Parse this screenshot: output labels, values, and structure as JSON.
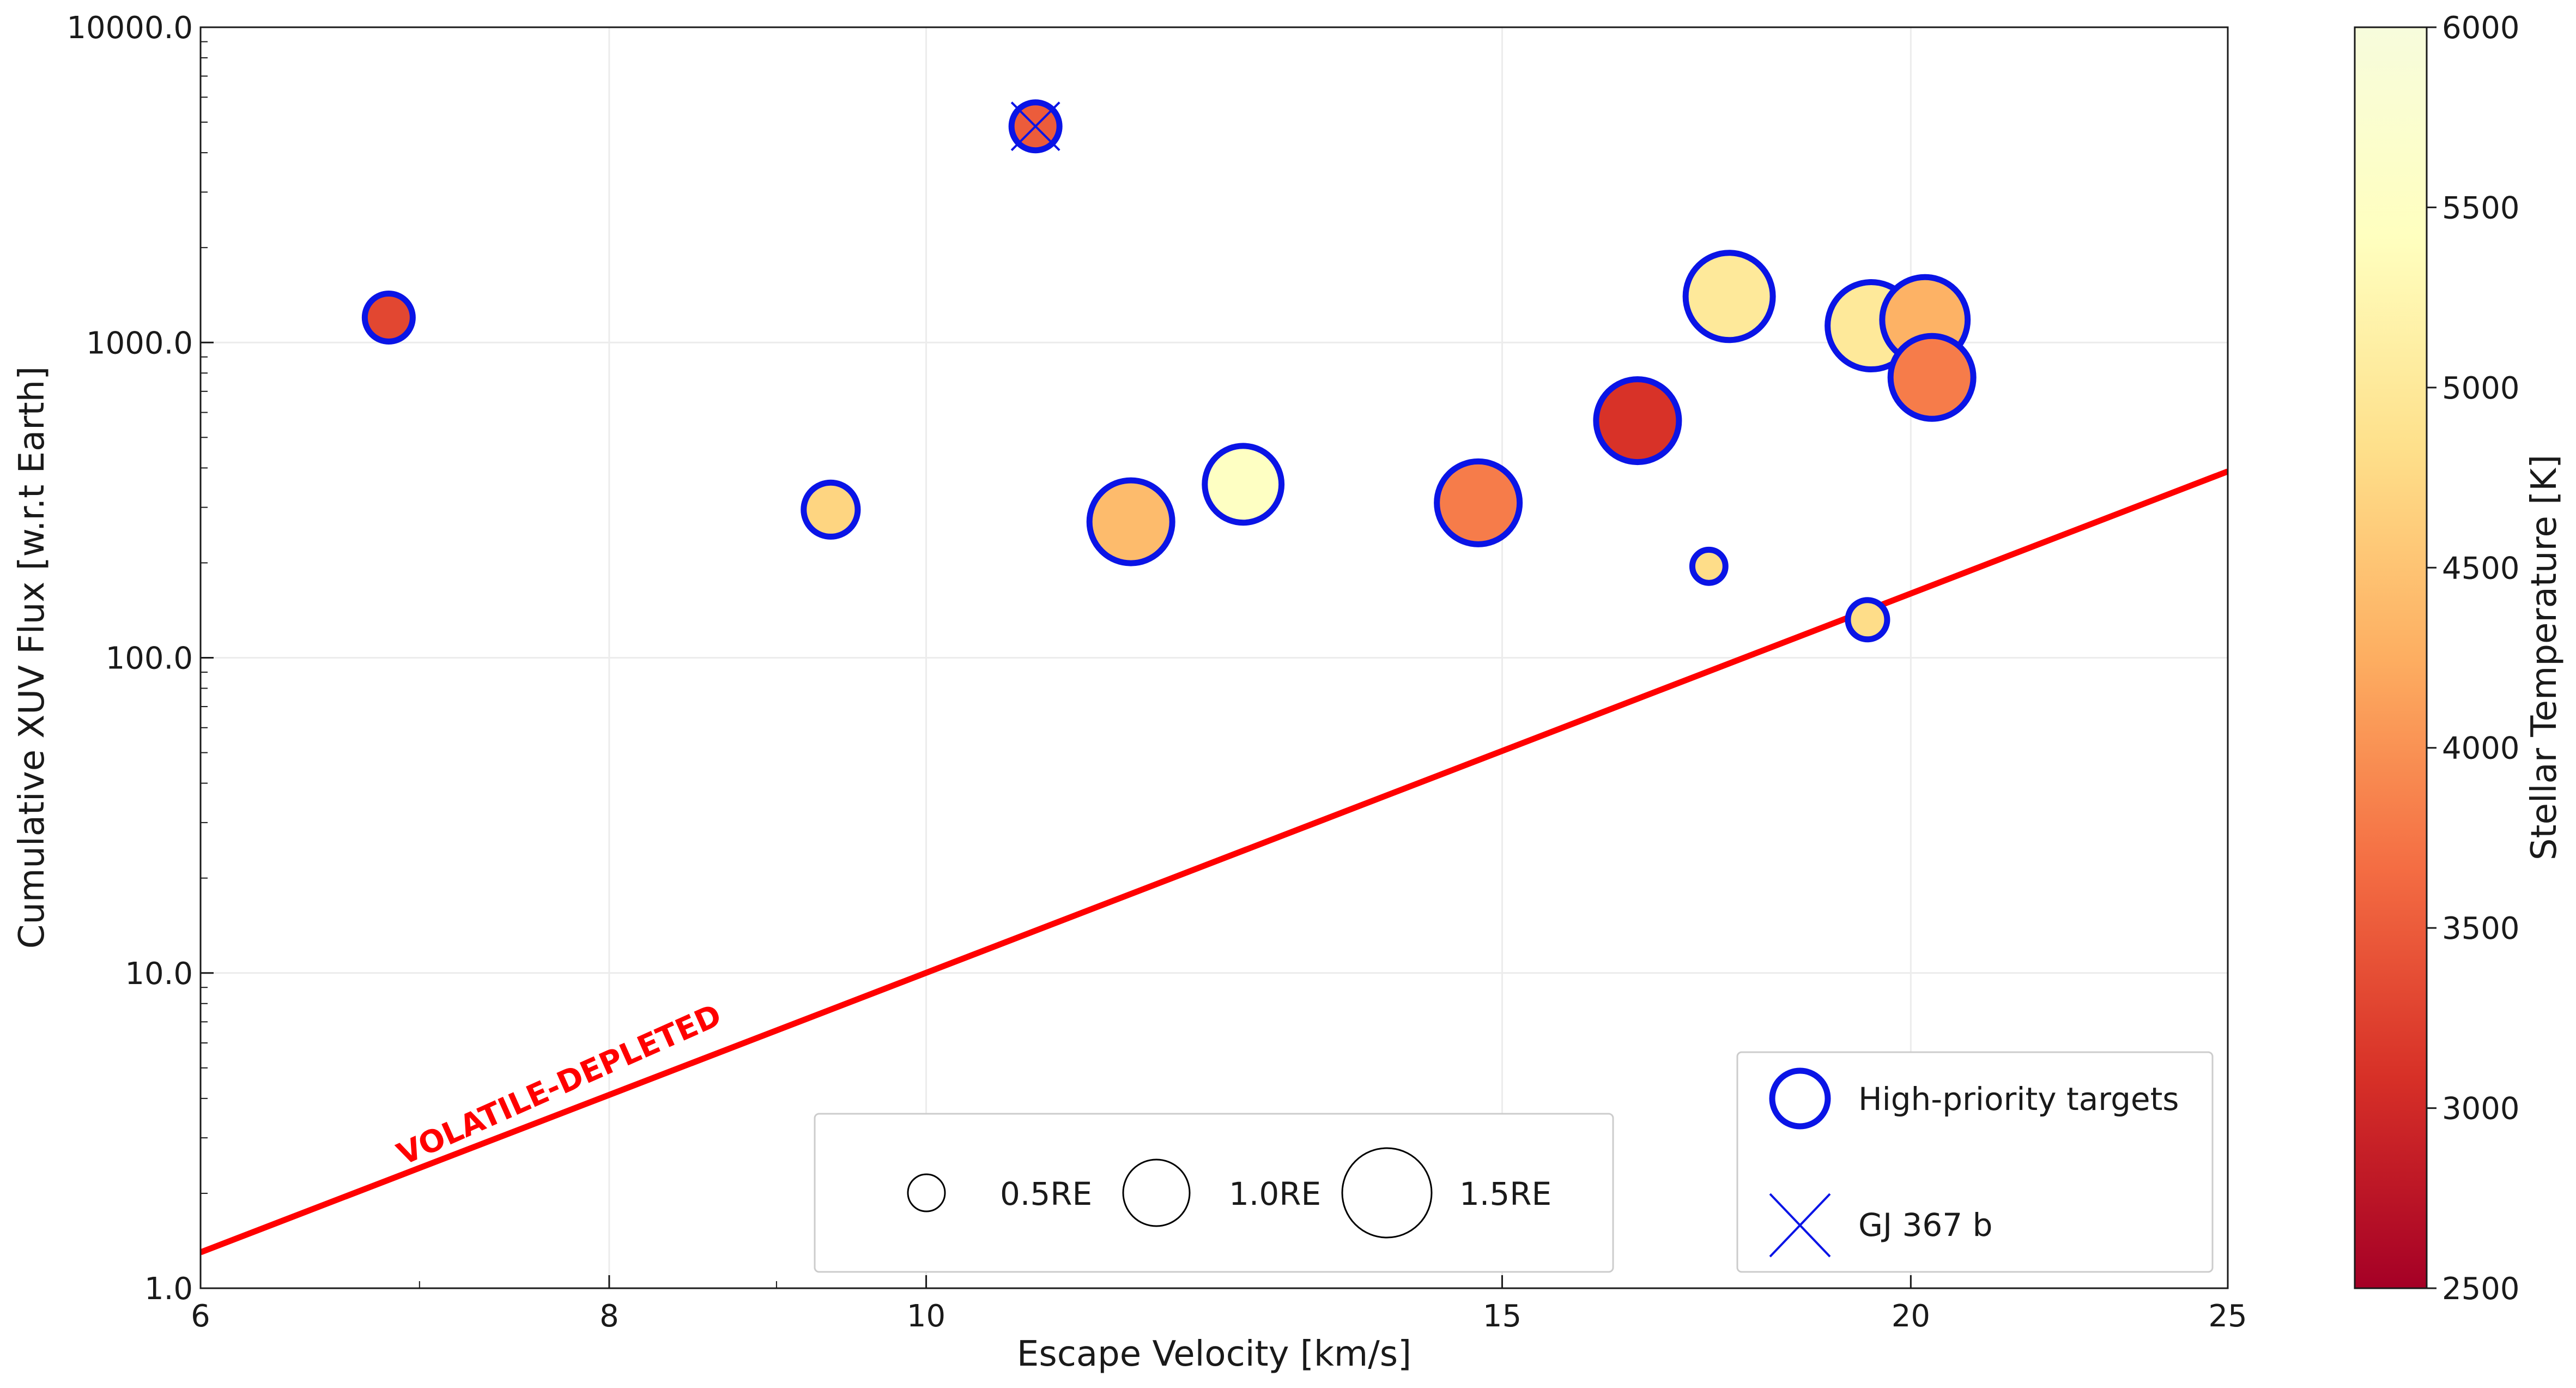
{
  "chart_data": {
    "type": "scatter",
    "title": "",
    "xlabel": "Escape Velocity [km/s]",
    "ylabel": "Cumulative XUV Flux [w.r.t Earth]",
    "xscale": "log",
    "yscale": "log",
    "xlim": [
      6,
      25
    ],
    "ylim": [
      1,
      10000
    ],
    "xticks": [
      6,
      8,
      10,
      15,
      20,
      25
    ],
    "xtick_labels": [
      "6",
      "8",
      "10",
      "15",
      "20",
      "25"
    ],
    "yticks": [
      1,
      10,
      100,
      1000,
      10000
    ],
    "ytick_labels": [
      "1.0",
      "10.0",
      "100.0",
      "1000.0",
      "10000.0"
    ],
    "grid": true,
    "colorbar": {
      "label": "Stellar Temperature [K]",
      "range": [
        2500,
        6000
      ],
      "ticks": [
        2500,
        3000,
        3500,
        4000,
        4500,
        5000,
        5500,
        6000
      ],
      "tick_labels": [
        "2500",
        "3000",
        "3500",
        "4000",
        "4500",
        "5000",
        "5500",
        "6000"
      ],
      "colormap": "YlOrRd_r",
      "stops": [
        "#a50026",
        "#d73027",
        "#f46d43",
        "#fdae61",
        "#fee08b",
        "#ffffbf",
        "#f7fcdc"
      ]
    },
    "shoreline": {
      "x": [
        6,
        25
      ],
      "y": [
        1.3,
        390
      ],
      "color": "#ff0000",
      "label": "VOLATILE-DEPLETED"
    },
    "points": [
      {
        "x": 6.85,
        "y": 1200,
        "radius_re": 0.55,
        "teff": 3300,
        "high_priority": true
      },
      {
        "x": 9.35,
        "y": 295,
        "radius_re": 0.62,
        "teff": 4700,
        "high_priority": true
      },
      {
        "x": 10.8,
        "y": 4850,
        "radius_re": 0.55,
        "teff": 3500,
        "high_priority": true,
        "name": "GJ 367 b"
      },
      {
        "x": 11.55,
        "y": 270,
        "radius_re": 0.95,
        "teff": 4400,
        "high_priority": true
      },
      {
        "x": 12.5,
        "y": 355,
        "radius_re": 0.88,
        "teff": 5500,
        "high_priority": true
      },
      {
        "x": 14.75,
        "y": 310,
        "radius_re": 0.95,
        "teff": 3800,
        "high_priority": true
      },
      {
        "x": 16.5,
        "y": 565,
        "radius_re": 0.95,
        "teff": 3100,
        "high_priority": true
      },
      {
        "x": 17.35,
        "y": 195,
        "radius_re": 0.38,
        "teff": 4800,
        "high_priority": true
      },
      {
        "x": 17.6,
        "y": 1400,
        "radius_re": 1.0,
        "teff": 5000,
        "high_priority": true
      },
      {
        "x": 19.4,
        "y": 132,
        "radius_re": 0.45,
        "teff": 4800,
        "high_priority": true
      },
      {
        "x": 20.2,
        "y": 1180,
        "radius_re": 0.98,
        "teff": 4300,
        "high_priority": true
      },
      {
        "x": 19.45,
        "y": 1130,
        "radius_re": 1.0,
        "teff": 5000,
        "high_priority": true
      },
      {
        "x": 20.3,
        "y": 775,
        "radius_re": 0.95,
        "teff": 3800,
        "high_priority": true
      }
    ],
    "size_legend": {
      "entries": [
        {
          "label": "0.5RE",
          "radius_re": 0.5
        },
        {
          "label": "1.0RE",
          "radius_re": 1.0
        },
        {
          "label": "1.5RE",
          "radius_re": 1.5
        }
      ]
    },
    "marker_legend": {
      "entries": [
        {
          "label": "High-priority targets",
          "marker": "blue-circle"
        },
        {
          "label": "GJ 367 b",
          "marker": "blue-x"
        }
      ]
    }
  },
  "colors": {
    "marker_edge": "#0a14e6",
    "grid": "#ececec",
    "axis": "#1a1a1a"
  }
}
